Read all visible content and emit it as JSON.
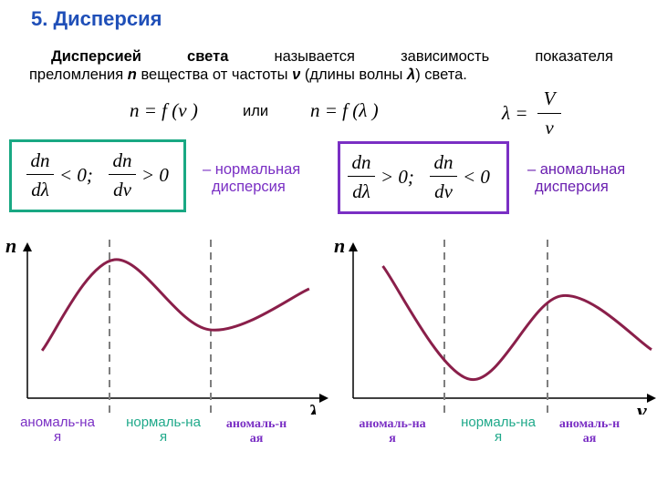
{
  "title": "5. Дисперсия",
  "definition": {
    "line1_words": [
      "Дисперсией",
      "света",
      "называется",
      "зависимость",
      "показателя"
    ],
    "line2_prefix": "преломления",
    "n": "n",
    "line2_mid1": "вещества от частоты",
    "nu": "ν",
    "line2_mid2": "(длины волны",
    "lambda": "λ",
    "line2_suffix": ") света."
  },
  "formulas": {
    "f1": "n = f (ν )",
    "or": "или",
    "f2": "n = f (λ )",
    "lambda_lhs": "λ =",
    "frac_num": "V",
    "frac_den": "ν"
  },
  "normal_box": {
    "top1": "dn",
    "bot1": "dλ",
    "rel1": "< 0;",
    "top2": "dn",
    "bot2": "dν",
    "rel2": "> 0",
    "desc_line1": "– нормальная",
    "desc_line2": "дисперсия"
  },
  "anomal_box": {
    "top1": "dn",
    "bot1": "dλ",
    "rel1": "> 0;",
    "top2": "dn",
    "bot2": "dν",
    "rel2": "< 0",
    "desc_line1": "– аномальная",
    "desc_line2": "дисперсия"
  },
  "chart_data": [
    {
      "type": "line",
      "title": "",
      "ylabel": "n",
      "xlabel": "λ",
      "series": [
        {
          "values": [
            [
              0.02,
              0.22
            ],
            [
              0.28,
              1.0
            ],
            [
              0.62,
              0.4
            ],
            [
              0.98,
              0.75
            ]
          ]
        }
      ],
      "region_labels": [
        {
          "line1": "аномаль-на",
          "line2": "я"
        },
        {
          "line1": "нормаль-на",
          "line2": "я"
        },
        {
          "line1": "аномаль-н",
          "line2": "ая"
        }
      ]
    },
    {
      "type": "line",
      "title": "",
      "ylabel": "n",
      "xlabel": "ν",
      "series": [
        {
          "values": [
            [
              0.05,
              1.0
            ],
            [
              0.36,
              0.05
            ],
            [
              0.68,
              0.75
            ],
            [
              1.0,
              0.3
            ]
          ]
        }
      ],
      "region_labels": [
        {
          "line1": "аномаль-на",
          "line2": "я"
        },
        {
          "line1": "нормаль-на",
          "line2": "я"
        },
        {
          "line1": "аномаль-н",
          "line2": "ая"
        }
      ]
    }
  ],
  "colors": {
    "title": "#1f4fb8",
    "curve": "#8a1f4a",
    "green_box": "#19a883",
    "purple_box": "#7a2fc4",
    "label_purple": "#7a2fc4",
    "label_teal": "#1fa98a"
  }
}
